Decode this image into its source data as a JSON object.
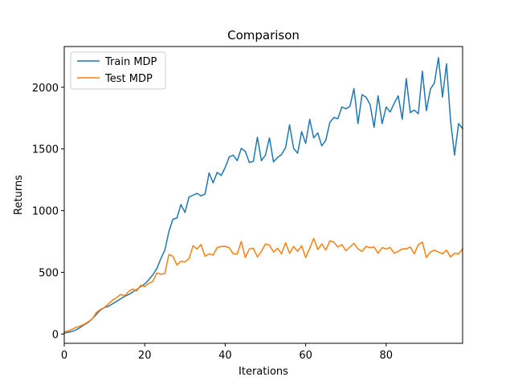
{
  "chart_data": {
    "type": "line",
    "title": "Comparison",
    "xlabel": "Iterations",
    "ylabel": "Returns",
    "xlim": [
      0,
      99
    ],
    "ylim": [
      -75,
      2330
    ],
    "xticks": [
      0,
      20,
      40,
      60,
      80
    ],
    "yticks": [
      0,
      500,
      1000,
      1500,
      2000
    ],
    "grid": false,
    "legend": {
      "placement": "top-left"
    },
    "series": [
      {
        "name": "Train MDP",
        "color": "#1f77b4",
        "values": [
          8,
          15,
          22,
          35,
          55,
          75,
          95,
          125,
          160,
          195,
          215,
          225,
          245,
          265,
          285,
          305,
          320,
          340,
          360,
          385,
          405,
          440,
          480,
          530,
          610,
          680,
          830,
          930,
          940,
          1050,
          985,
          1110,
          1125,
          1140,
          1120,
          1135,
          1305,
          1225,
          1310,
          1285,
          1350,
          1435,
          1450,
          1405,
          1505,
          1480,
          1390,
          1400,
          1595,
          1405,
          1450,
          1590,
          1395,
          1430,
          1455,
          1510,
          1695,
          1505,
          1465,
          1640,
          1545,
          1740,
          1590,
          1630,
          1525,
          1570,
          1715,
          1755,
          1745,
          1840,
          1825,
          1845,
          1990,
          1705,
          1940,
          1920,
          1860,
          1675,
          1930,
          1705,
          1840,
          1800,
          1870,
          1930,
          1740,
          2070,
          1795,
          1815,
          1785,
          2130,
          1810,
          1985,
          2035,
          2240,
          1920,
          2190,
          1730,
          1450,
          1705,
          1665
        ]
      },
      {
        "name": "Test MDP",
        "color": "#ff7f0e",
        "values": [
          15,
          25,
          40,
          55,
          65,
          80,
          100,
          125,
          175,
          200,
          215,
          245,
          275,
          295,
          320,
          310,
          345,
          365,
          350,
          395,
          385,
          410,
          425,
          495,
          485,
          490,
          645,
          630,
          560,
          590,
          585,
          610,
          715,
          690,
          725,
          630,
          650,
          640,
          700,
          710,
          710,
          700,
          650,
          650,
          750,
          620,
          690,
          695,
          625,
          670,
          730,
          720,
          665,
          695,
          650,
          740,
          655,
          710,
          670,
          715,
          620,
          695,
          775,
          685,
          730,
          680,
          755,
          745,
          705,
          725,
          675,
          705,
          735,
          690,
          670,
          710,
          700,
          705,
          655,
          700,
          690,
          700,
          655,
          670,
          690,
          690,
          705,
          650,
          725,
          745,
          620,
          665,
          680,
          665,
          650,
          680,
          625,
          655,
          650,
          690
        ]
      }
    ]
  }
}
